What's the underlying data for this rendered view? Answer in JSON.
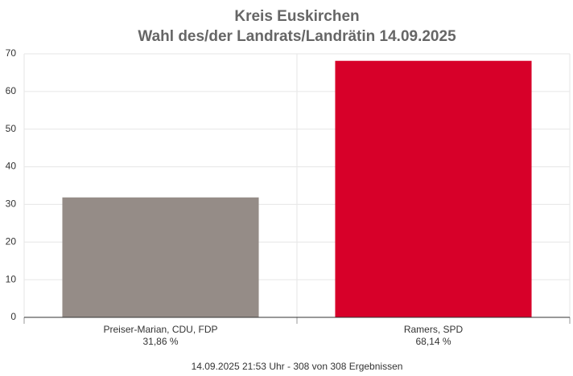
{
  "chart_data": {
    "type": "bar",
    "title": "Kreis Euskirchen",
    "subtitle": "Wahl des/der Landrats/Landrätin 14.09.2025",
    "categories": [
      "Preiser-Marian, CDU, FDP",
      "Ramers, SPD"
    ],
    "values": [
      31.86,
      68.14
    ],
    "value_labels": [
      "31,86 %",
      "68,14 %"
    ],
    "colors": [
      "#958c87",
      "#d70029"
    ],
    "ylim": [
      0,
      70
    ],
    "yticks": [
      0,
      10,
      20,
      30,
      40,
      50,
      60,
      70
    ],
    "grid": true,
    "footer": "14.09.2025 21:53 Uhr - 308 von 308 Ergebnissen"
  }
}
